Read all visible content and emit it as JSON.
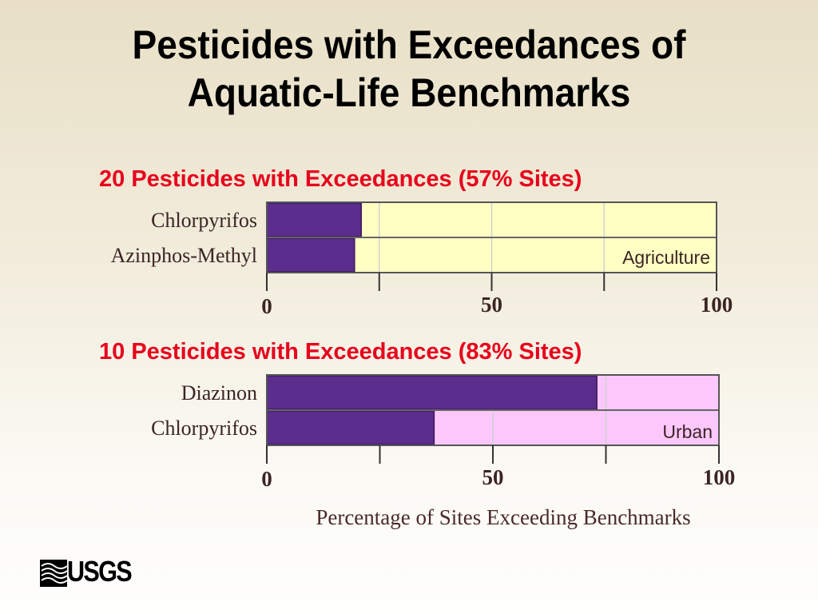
{
  "slide": {
    "title_line1": "Pesticides with Exceedances of",
    "title_line2": "Aquatic-Life Benchmarks"
  },
  "x_axis_label": "Percentage of Sites Exceeding Benchmarks",
  "logo_text": "USGS",
  "colors": {
    "bar": "#5b2d8c",
    "heading": "#e8001c",
    "agriculture_bg": "#ffffc4",
    "urban_bg": "#fcc8fc"
  },
  "chart_data": [
    {
      "type": "bar",
      "orientation": "horizontal",
      "title": "20 Pesticides with Exceedances (57% Sites)",
      "panel_label": "Agriculture",
      "categories": [
        "Chlorpyrifos",
        "Azinphos-Methyl"
      ],
      "values": [
        21,
        19.5
      ],
      "xlim": [
        0,
        100
      ],
      "ticks": [
        0,
        25,
        50,
        75,
        100
      ],
      "tick_labels": [
        "0",
        "",
        "50",
        "",
        "100"
      ],
      "xlabel": "Percentage of Sites Exceeding Benchmarks",
      "grid": true
    },
    {
      "type": "bar",
      "orientation": "horizontal",
      "title": "10 Pesticides with Exceedances (83% Sites)",
      "panel_label": "Urban",
      "categories": [
        "Diazinon",
        "Chlorpyrifos"
      ],
      "values": [
        73,
        37
      ],
      "xlim": [
        0,
        100
      ],
      "ticks": [
        0,
        25,
        50,
        75,
        100
      ],
      "tick_labels": [
        "0",
        "",
        "50",
        "",
        "100"
      ],
      "xlabel": "Percentage of Sites Exceeding Benchmarks",
      "grid": true
    }
  ]
}
